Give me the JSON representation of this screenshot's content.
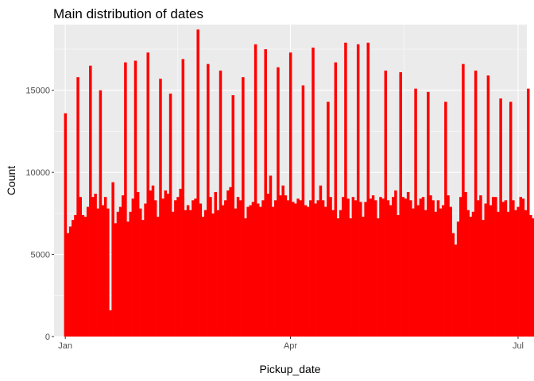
{
  "chart_data": {
    "type": "bar",
    "title": "Main distribution of dates",
    "xlabel": "Pickup_date",
    "ylabel": "Count",
    "x_ticks": [
      {
        "label": "Jan",
        "day": 0
      },
      {
        "label": "Apr",
        "day": 90
      },
      {
        "label": "Jul",
        "day": 181
      }
    ],
    "y_ticks": [
      0,
      5000,
      10000,
      15000
    ],
    "ylim": [
      0,
      19000
    ],
    "xlim_days": [
      -4.5,
      184.5
    ],
    "bar_color": "#ff0000",
    "panel_background": "#ebebeb",
    "grid": true,
    "values": [
      13600,
      6300,
      6700,
      7100,
      7400,
      15800,
      8500,
      7400,
      7300,
      7900,
      16500,
      8500,
      8700,
      7800,
      15000,
      8000,
      8500,
      7800,
      1600,
      9400,
      6900,
      7600,
      7900,
      8600,
      16700,
      7000,
      7600,
      8400,
      16800,
      8800,
      7800,
      7100,
      8100,
      17300,
      8900,
      9200,
      8300,
      7300,
      15700,
      8400,
      8900,
      8700,
      14800,
      7600,
      8300,
      8500,
      9000,
      16900,
      7700,
      8000,
      7700,
      8300,
      8400,
      18700,
      8100,
      7300,
      7700,
      16600,
      8500,
      7500,
      8800,
      7700,
      16200,
      8000,
      8300,
      8900,
      9100,
      14700,
      7800,
      8500,
      8300,
      15800,
      7200,
      7900,
      8000,
      8200,
      17800,
      8100,
      7900,
      8300,
      17500,
      8700,
      9800,
      7900,
      8300,
      16400,
      8600,
      9200,
      8600,
      8300,
      17300,
      8200,
      8100,
      8400,
      8300,
      15300,
      8000,
      7900,
      8300,
      17600,
      8100,
      8300,
      9200,
      8300,
      7900,
      14300,
      8500,
      7700,
      16700,
      7200,
      7700,
      8500,
      17900,
      8400,
      7200,
      8500,
      8300,
      17800,
      8200,
      7300,
      8200,
      17900,
      8400,
      8600,
      8300,
      7200,
      8500,
      8400,
      16200,
      8300,
      8000,
      8500,
      8900,
      7400,
      16100,
      8500,
      8400,
      8800,
      8300,
      7800,
      15100,
      8000,
      8400,
      8500,
      7700,
      14900,
      8600,
      8300,
      7600,
      8300,
      7800,
      8000,
      14300,
      8600,
      7900,
      6300,
      5600,
      7000,
      8500,
      16600,
      8800,
      7700,
      7300,
      7600,
      16200,
      8300,
      8600,
      7100,
      8100,
      15900,
      8000,
      8500,
      8500,
      7600,
      14500,
      8200,
      8300,
      7600,
      14300,
      8300,
      7700,
      7900,
      8500,
      8400,
      7700,
      15100,
      7400,
      7200,
      7600,
      7500
    ]
  }
}
